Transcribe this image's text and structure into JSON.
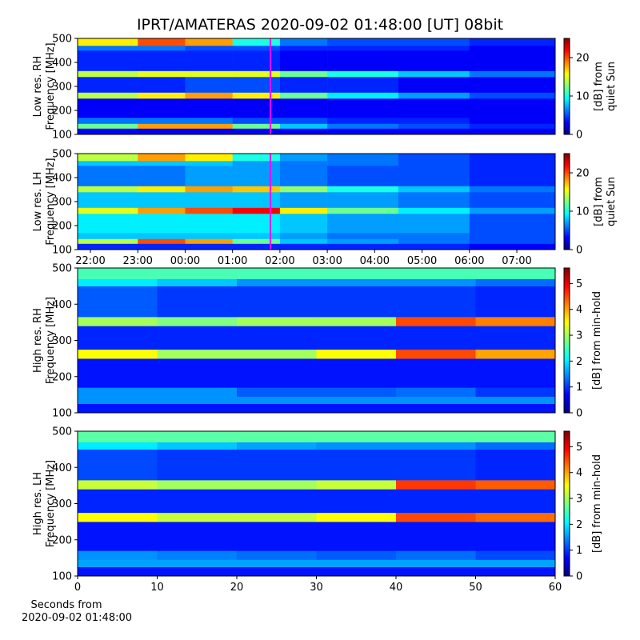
{
  "title": "IPRT/AMATERAS 2020-09-02 01:48:00 [UT]   08bit",
  "chart_data": [
    {
      "type": "heatmap",
      "colormap": "jet",
      "ylabel": [
        "Low res. RH",
        "Frequency [MHz]"
      ],
      "xlim": [
        21.73,
        31.81
      ],
      "ylim": [
        100,
        500
      ],
      "yticks": [
        100,
        200,
        300,
        400,
        500
      ],
      "x_edges": [
        21.73,
        23,
        24,
        25,
        26,
        27,
        28.5,
        30,
        31.81
      ],
      "y_edges": [
        100,
        125,
        145,
        170,
        250,
        275,
        340,
        365,
        450,
        470,
        500
      ],
      "z": [
        [
          3,
          3,
          3,
          3,
          3,
          3,
          3,
          3
        ],
        [
          12,
          18,
          18,
          12,
          8,
          6,
          5,
          4
        ],
        [
          6,
          6,
          6,
          5,
          5,
          4,
          4,
          3
        ],
        [
          3,
          3,
          3,
          3,
          3,
          3,
          3,
          3
        ],
        [
          14,
          16,
          18,
          16,
          12,
          9,
          7,
          5
        ],
        [
          4,
          4,
          5,
          5,
          4,
          4,
          3,
          3
        ],
        [
          14,
          15,
          15,
          15,
          12,
          10,
          8,
          6
        ],
        [
          4,
          4,
          4,
          4,
          3,
          3,
          3,
          3
        ],
        [
          6,
          6,
          5,
          5,
          4,
          4,
          4,
          3
        ],
        [
          16,
          20,
          18,
          10,
          6,
          5,
          5,
          4
        ]
      ],
      "vline": {
        "x": 25.8,
        "color": "#ff00ff"
      },
      "colorbar": {
        "label": [
          "[dB] from",
          "quiet Sun"
        ],
        "lim": [
          0,
          25
        ],
        "ticks": [
          0,
          10,
          20
        ]
      }
    },
    {
      "type": "heatmap",
      "colormap": "jet",
      "ylabel": [
        "Low res. LH",
        "Frequency [MHz]"
      ],
      "xlim": [
        21.73,
        31.81
      ],
      "ylim": [
        100,
        500
      ],
      "yticks": [
        100,
        200,
        300,
        400,
        500
      ],
      "xticks": [
        {
          "value": 22,
          "label": "22:00"
        },
        {
          "value": 23,
          "label": "23:00"
        },
        {
          "value": 24,
          "label": "00:00"
        },
        {
          "value": 25,
          "label": "01:00"
        },
        {
          "value": 26,
          "label": "02:00"
        },
        {
          "value": 27,
          "label": "03:00"
        },
        {
          "value": 28,
          "label": "04:00"
        },
        {
          "value": 29,
          "label": "05:00"
        },
        {
          "value": 30,
          "label": "06:00"
        },
        {
          "value": 31,
          "label": "07:00"
        }
      ],
      "x_edges": [
        21.73,
        23,
        24,
        25,
        26,
        27,
        28.5,
        30,
        31.81
      ],
      "y_edges": [
        100,
        125,
        145,
        170,
        250,
        275,
        340,
        365,
        450,
        470,
        500
      ],
      "z": [
        [
          4,
          4,
          4,
          4,
          4,
          4,
          4,
          3
        ],
        [
          14,
          20,
          18,
          12,
          8,
          7,
          6,
          5
        ],
        [
          8,
          8,
          8,
          8,
          7,
          6,
          6,
          5
        ],
        [
          9,
          9,
          9,
          9,
          8,
          7,
          7,
          5
        ],
        [
          15,
          18,
          20,
          22,
          16,
          12,
          9,
          7
        ],
        [
          8,
          8,
          8,
          8,
          7,
          7,
          6,
          5
        ],
        [
          14,
          16,
          18,
          17,
          13,
          10,
          8,
          6
        ],
        [
          6,
          6,
          7,
          7,
          6,
          5,
          5,
          4
        ],
        [
          8,
          8,
          8,
          7,
          6,
          6,
          5,
          4
        ],
        [
          14,
          18,
          16,
          10,
          7,
          6,
          5,
          4
        ]
      ],
      "vline": {
        "x": 25.8,
        "color": "#ff00ff"
      },
      "colorbar": {
        "label": [
          "[dB] from",
          "quiet Sun"
        ],
        "lim": [
          0,
          25
        ],
        "ticks": [
          0,
          10,
          20
        ]
      }
    },
    {
      "type": "heatmap",
      "colormap": "jet",
      "ylabel": [
        "High res. RH",
        "Frequency [MHz]"
      ],
      "xlim": [
        0,
        60
      ],
      "ylim": [
        100,
        500
      ],
      "yticks": [
        100,
        200,
        300,
        400,
        500
      ],
      "x_edges": [
        0,
        10,
        20,
        30,
        40,
        50,
        60
      ],
      "y_edges": [
        100,
        125,
        145,
        170,
        250,
        275,
        340,
        365,
        450,
        470,
        500
      ],
      "z": [
        [
          0.8,
          0.8,
          0.8,
          0.8,
          0.8,
          0.8
        ],
        [
          1.5,
          1.5,
          1.5,
          1.5,
          1.5,
          1.5
        ],
        [
          1.5,
          1.5,
          1.2,
          1.2,
          1.3,
          1
        ],
        [
          0.8,
          0.8,
          0.8,
          0.8,
          0.8,
          0.8
        ],
        [
          3.5,
          3,
          3,
          3.5,
          4.5,
          4
        ],
        [
          0.9,
          0.9,
          0.9,
          0.9,
          0.9,
          0.9
        ],
        [
          3,
          2.8,
          3,
          3,
          4.5,
          4.2
        ],
        [
          1.2,
          1,
          1,
          1,
          1,
          0.9
        ],
        [
          2,
          1.8,
          1.5,
          1.5,
          1.5,
          1.3
        ],
        [
          2.5,
          2.5,
          2.5,
          2.5,
          2.5,
          2.5
        ]
      ],
      "colorbar": {
        "label": [
          "[dB] from min-hold"
        ],
        "lim": [
          0,
          5.6
        ],
        "ticks": [
          0,
          1,
          2,
          3,
          4,
          5
        ]
      }
    },
    {
      "type": "heatmap",
      "colormap": "jet",
      "ylabel": [
        "High res. LH",
        "Frequency [MHz]"
      ],
      "xlabel": [
        "Seconds from",
        "2020-09-02 01:48:00"
      ],
      "xlim": [
        0,
        60
      ],
      "ylim": [
        100,
        500
      ],
      "yticks": [
        100,
        200,
        300,
        400,
        500
      ],
      "xticks": [
        0,
        10,
        20,
        30,
        40,
        50,
        60
      ],
      "x_edges": [
        0,
        10,
        20,
        30,
        40,
        50,
        60
      ],
      "y_edges": [
        100,
        125,
        145,
        170,
        250,
        275,
        340,
        365,
        450,
        470,
        500
      ],
      "z": [
        [
          0.8,
          0.8,
          0.8,
          0.8,
          0.8,
          0.8
        ],
        [
          1.6,
          1.6,
          1.6,
          1.6,
          1.6,
          1.6
        ],
        [
          1.5,
          1.4,
          1.3,
          1.2,
          1.3,
          1.1
        ],
        [
          0.8,
          0.8,
          0.8,
          0.8,
          0.8,
          0.8
        ],
        [
          3.5,
          3.2,
          3.2,
          3.5,
          4.5,
          4.3
        ],
        [
          0.9,
          0.9,
          0.9,
          0.9,
          0.9,
          0.9
        ],
        [
          3.2,
          3,
          3,
          3.2,
          4.6,
          4.4
        ],
        [
          1.1,
          1,
          1,
          1,
          1,
          0.9
        ],
        [
          2,
          1.8,
          1.6,
          1.5,
          1.5,
          1.3
        ],
        [
          2.6,
          2.6,
          2.6,
          2.6,
          2.6,
          2.6
        ]
      ],
      "colorbar": {
        "label": [
          "[dB] from min-hold"
        ],
        "lim": [
          0,
          5.6
        ],
        "ticks": [
          0,
          1,
          2,
          3,
          4,
          5
        ]
      }
    }
  ]
}
